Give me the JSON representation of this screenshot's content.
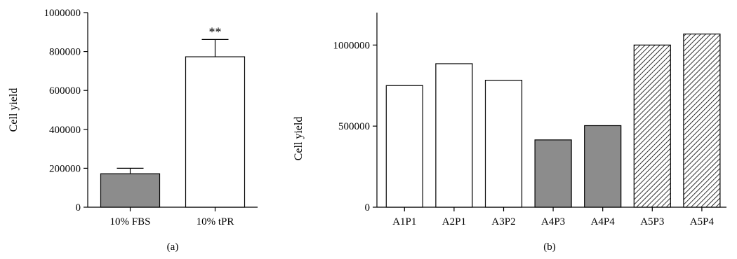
{
  "chart_data": [
    {
      "type": "bar",
      "panel_label": "(a)",
      "title": "",
      "xlabel": "",
      "ylabel": "Cell yield",
      "ylim": [
        0,
        1000000
      ],
      "yticks": [
        0,
        200000,
        400000,
        600000,
        800000,
        1000000
      ],
      "ytick_labels": [
        "0",
        "200000",
        "400000",
        "600000",
        "800000",
        "1000000"
      ],
      "categories": [
        "10% FBS",
        "10% tPR"
      ],
      "values": [
        172000,
        773000
      ],
      "error_upper": [
        200000,
        862000
      ],
      "fills": [
        "gray",
        "white"
      ],
      "annotations": [
        {
          "category": "10% tPR",
          "text": "**"
        }
      ],
      "grid": false
    },
    {
      "type": "bar",
      "panel_label": "(b)",
      "title": "",
      "xlabel": "",
      "ylabel": "Cell yield",
      "ylim": [
        0,
        1200000
      ],
      "yticks": [
        0,
        500000,
        1000000
      ],
      "ytick_labels": [
        "0",
        "500000",
        "1000000"
      ],
      "categories": [
        "A1P1",
        "A2P1",
        "A3P2",
        "A4P3",
        "A4P4",
        "A5P3",
        "A5P4"
      ],
      "values": [
        750000,
        885000,
        783000,
        415000,
        503000,
        1000000,
        1068000
      ],
      "fills": [
        "white",
        "white",
        "white",
        "gray",
        "gray",
        "hatch",
        "hatch"
      ],
      "grid": false
    }
  ],
  "colors": {
    "gray": "#8c8c8c",
    "white": "#ffffff",
    "axis": "#000000"
  }
}
